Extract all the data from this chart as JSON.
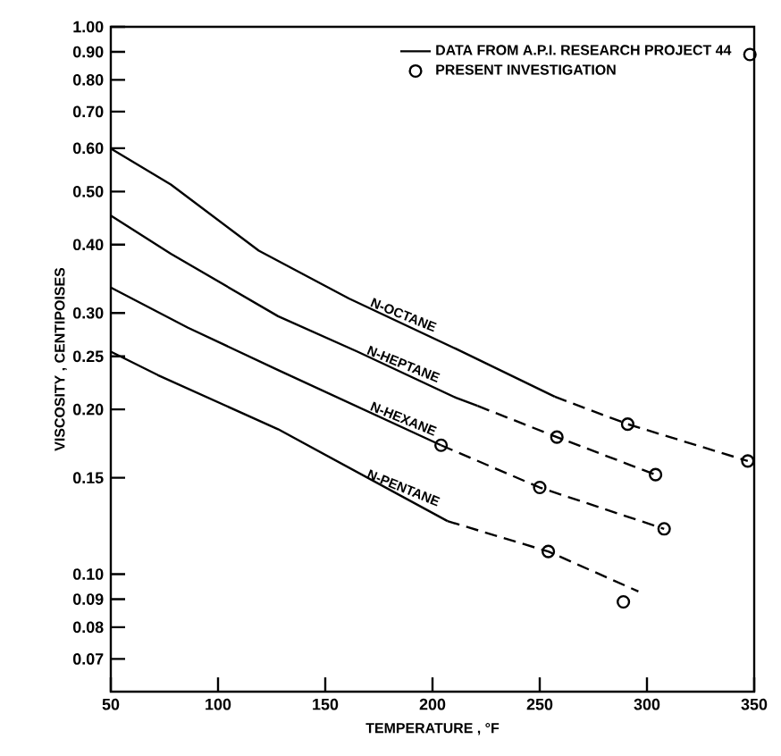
{
  "chart_data": {
    "type": "line",
    "xlabel": "TEMPERATURE , °F",
    "ylabel": "VISCOSITY , CENTIPOISES",
    "log": "y",
    "xlim": [
      50,
      350
    ],
    "xticks": [
      50,
      100,
      150,
      200,
      250,
      300,
      350
    ],
    "ylim": [
      0.061,
      1.0
    ],
    "yticks": [
      {
        "value": 1.0,
        "label": "1.00"
      },
      {
        "value": 0.9,
        "label": "0.90"
      },
      {
        "value": 0.8,
        "label": "0.80"
      },
      {
        "value": 0.7,
        "label": "0.70"
      },
      {
        "value": 0.6,
        "label": "0.60"
      },
      {
        "value": 0.5,
        "label": "0.50"
      },
      {
        "value": 0.4,
        "label": "0.40"
      },
      {
        "value": 0.3,
        "label": "0.30"
      },
      {
        "value": 0.25,
        "label": "0.25"
      },
      {
        "value": 0.2,
        "label": "0.20"
      },
      {
        "value": 0.15,
        "label": "0.15"
      },
      {
        "value": 0.1,
        "label": "0.10"
      },
      {
        "value": 0.09,
        "label": "0.09"
      },
      {
        "value": 0.08,
        "label": "0.08"
      },
      {
        "value": 0.07,
        "label": "0.07"
      }
    ],
    "grid": false,
    "legend": "top right",
    "series": [
      {
        "name": "DATA FROM A.P.I. RESEARCH PROJECT 44",
        "color": "#000000",
        "line_style": "solid",
        "x": [
          50,
          78,
          119,
          161,
          211,
          257
        ],
        "values": [
          0.599,
          0.515,
          0.39,
          0.319,
          0.258,
          0.211
        ]
      },
      {
        "color": "#000000",
        "line_style": "solid",
        "x": [
          50,
          78,
          128,
          165,
          211,
          221
        ],
        "values": [
          0.452,
          0.385,
          0.296,
          0.255,
          0.21,
          0.203
        ]
      },
      {
        "color": "#000000",
        "line_style": "solid",
        "x": [
          50,
          86,
          128,
          204
        ],
        "values": [
          0.334,
          0.282,
          0.236,
          0.172
        ]
      },
      {
        "color": "#000000",
        "line_style": "solid",
        "x": [
          50,
          72,
          128,
          207
        ],
        "values": [
          0.255,
          0.231,
          0.184,
          0.125
        ]
      },
      {
        "color": "#000000",
        "line_style": "dashed",
        "x": [
          257,
          291,
          347
        ],
        "values": [
          0.211,
          0.188,
          0.161
        ]
      },
      {
        "color": "#000000",
        "line_style": "dashed",
        "x": [
          221,
          258,
          304
        ],
        "values": [
          0.203,
          0.178,
          0.152
        ]
      },
      {
        "color": "#000000",
        "line_style": "dashed",
        "x": [
          204,
          250,
          308
        ],
        "values": [
          0.172,
          0.144,
          0.121
        ]
      },
      {
        "color": "#000000",
        "line_style": "dashed",
        "x": [
          207,
          254,
          296
        ],
        "values": [
          0.125,
          0.11,
          0.093
        ]
      },
      {
        "name": "PRESENT INVESTIGATION",
        "type": "scatter",
        "marker": "circle",
        "color": "#000000",
        "x": [
          291,
          347,
          258,
          304,
          204,
          250,
          308,
          254,
          289,
          348
        ],
        "values": [
          0.188,
          0.161,
          0.178,
          0.152,
          0.172,
          0.144,
          0.121,
          0.11,
          0.089,
          0.89
        ]
      }
    ],
    "annotations": [
      "N-OCTANE",
      "N-HEPTANE",
      "N-HEXANE",
      "N-PENTANE"
    ]
  }
}
